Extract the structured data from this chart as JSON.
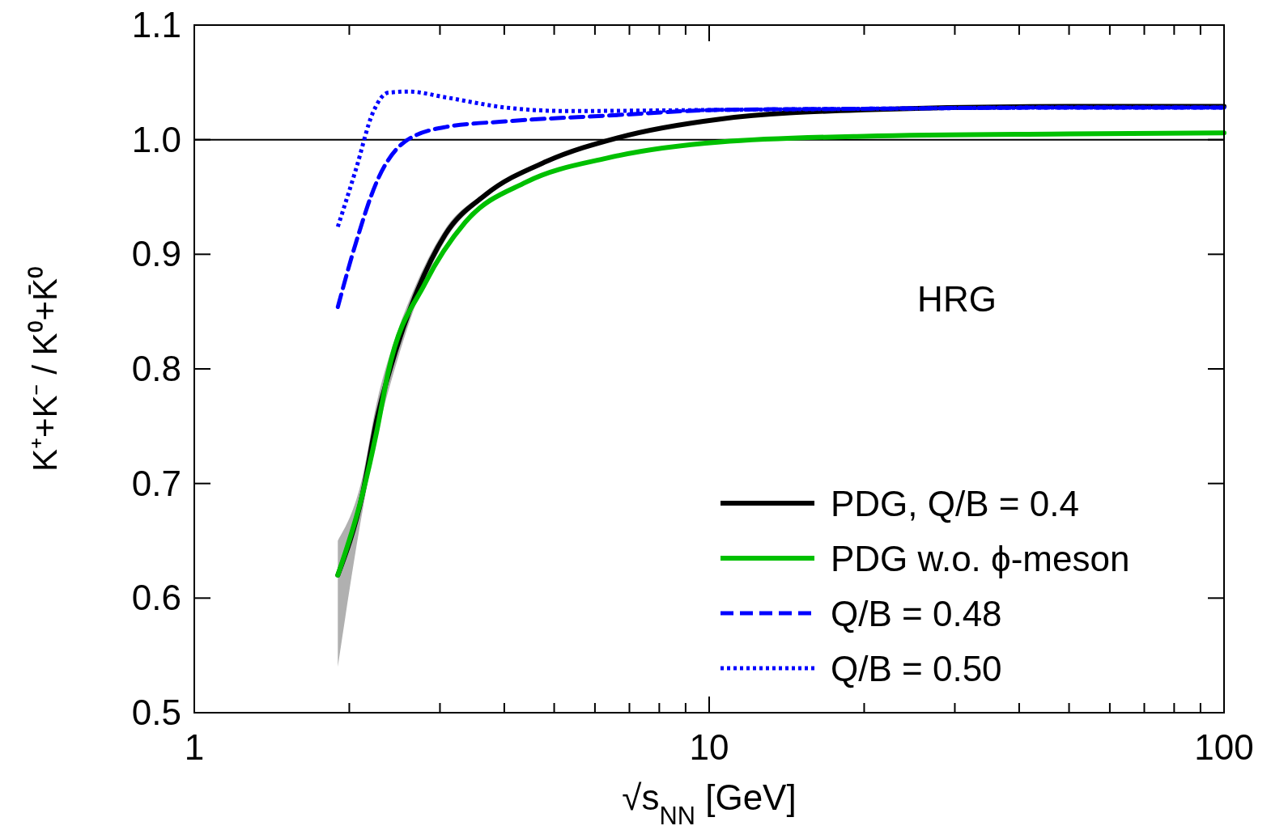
{
  "chart_data": {
    "type": "line",
    "xlabel": "√s$_{NN}$ [GeV]",
    "ylabel": "K⁺+K⁻ / K⁰+K̄⁰",
    "log": "x",
    "xlim": [
      1,
      100
    ],
    "ylim": [
      0.5,
      1.1
    ],
    "xticks": [
      1,
      {
        "value": 2,
        "label": null
      },
      {
        "value": 3,
        "label": null
      },
      {
        "value": 4,
        "label": null
      },
      {
        "value": 5,
        "label": null
      },
      {
        "value": 6,
        "label": null
      },
      {
        "value": 7,
        "label": null
      },
      {
        "value": 8,
        "label": null
      },
      {
        "value": 9,
        "label": null
      },
      10,
      {
        "value": 20,
        "label": null
      },
      {
        "value": 30,
        "label": null
      },
      {
        "value": 40,
        "label": null
      },
      {
        "value": 50,
        "label": null
      },
      {
        "value": 60,
        "label": null
      },
      {
        "value": 70,
        "label": null
      },
      {
        "value": 80,
        "label": null
      },
      {
        "value": 90,
        "label": null
      },
      100
    ],
    "yticks": [
      {
        "value": 0.5,
        "label": "0.5"
      },
      {
        "value": 0.6,
        "label": "0.6"
      },
      {
        "value": 0.7,
        "label": "0.7"
      },
      {
        "value": 0.8,
        "label": "0.8"
      },
      {
        "value": 0.9,
        "label": "0.9"
      },
      {
        "value": 1.0,
        "label": "1.0"
      },
      {
        "value": 1.1,
        "label": "1.1"
      }
    ],
    "legend": "bottom right",
    "marker": "none",
    "ref_lines": [
      {
        "axis": "y",
        "value": 1.0,
        "color": "#000000"
      }
    ],
    "annotations": [
      "HRG"
    ],
    "series": [
      {
        "name": "PDG, Q/B = 0.4",
        "color": "#000000",
        "line_style": "solid",
        "x": [
          1.9,
          2.12,
          2.26,
          2.47,
          2.71,
          3.07,
          3.68,
          4.83,
          6.69,
          10.5,
          20,
          50,
          100
        ],
        "values": [
          0.62,
          0.69,
          0.755,
          0.818,
          0.868,
          0.917,
          0.952,
          0.981,
          1.002,
          1.018,
          1.026,
          1.029,
          1.029
        ],
        "lower": [
          0.54,
          0.675,
          0.74,
          0.805,
          0.86,
          0.912,
          0.95,
          0.981,
          1.002,
          1.018,
          1.026,
          1.029,
          1.029
        ],
        "upper": [
          0.65,
          0.705,
          0.77,
          0.83,
          0.876,
          0.922,
          0.954,
          0.981,
          1.002,
          1.018,
          1.026,
          1.029,
          1.029
        ]
      },
      {
        "name": "PDG w.o. ϕ-meson",
        "color": "#00c000",
        "line_style": "solid",
        "x": [
          1.9,
          2.12,
          2.26,
          2.38,
          2.81,
          3.36,
          4.41,
          6.34,
          10.5,
          20,
          50,
          100
        ],
        "values": [
          0.62,
          0.69,
          0.745,
          0.797,
          0.875,
          0.928,
          0.963,
          0.984,
          0.998,
          1.003,
          1.005,
          1.006
        ]
      },
      {
        "name": "Q/B = 0.48",
        "color": "#0000ff",
        "line_style": "dashed",
        "x": [
          1.9,
          2.06,
          2.26,
          2.56,
          3.07,
          4.03,
          6.34,
          10.5,
          20,
          50,
          100
        ],
        "values": [
          0.854,
          0.91,
          0.963,
          0.998,
          1.011,
          1.016,
          1.021,
          1.026,
          1.027,
          1.028,
          1.028
        ]
      },
      {
        "name": "Q/B = 0.50",
        "color": "#0000ff",
        "line_style": "dotted",
        "x": [
          1.9,
          2.06,
          2.22,
          2.38,
          2.61,
          3.07,
          4.03,
          5.29,
          10.5,
          20,
          50,
          100
        ],
        "values": [
          0.924,
          0.974,
          1.023,
          1.041,
          1.042,
          1.037,
          1.028,
          1.025,
          1.026,
          1.027,
          1.028,
          1.028
        ]
      }
    ]
  }
}
